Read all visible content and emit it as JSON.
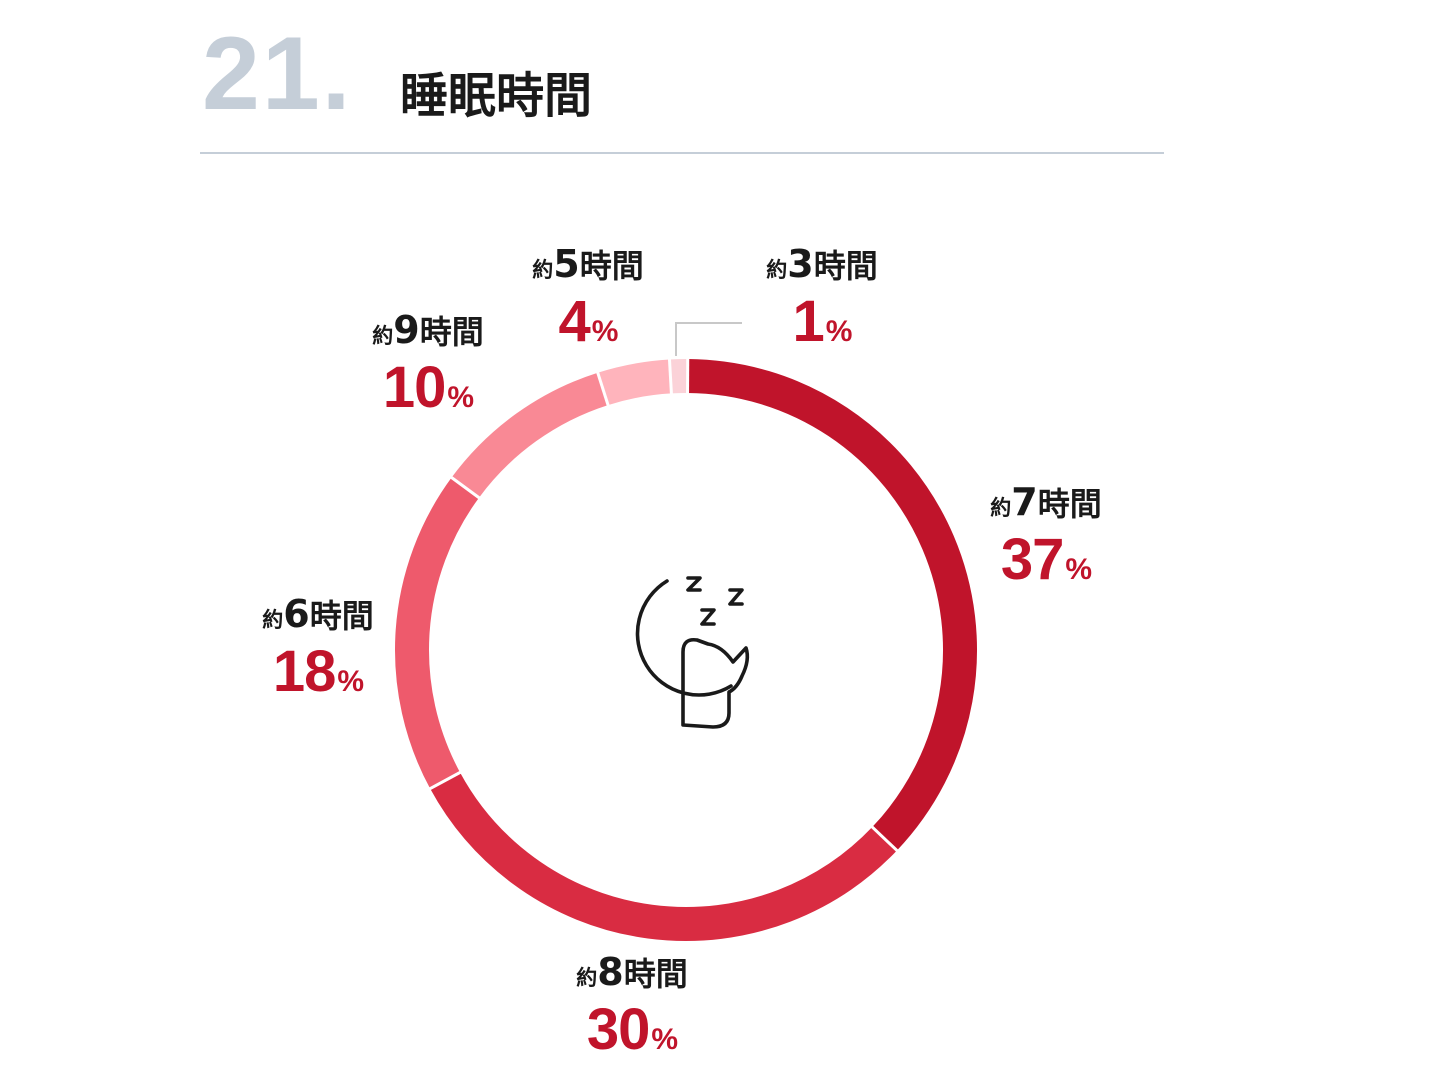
{
  "header": {
    "number": "21.",
    "title": "睡眠時間"
  },
  "icon": "sleeping-moon-icon",
  "chart_data": {
    "type": "pie",
    "categories": [
      "約3時間",
      "約7時間",
      "約8時間",
      "約6時間",
      "約9時間",
      "約5時間"
    ],
    "values": [
      1,
      37,
      30,
      18,
      10,
      4
    ],
    "unit": "%",
    "colors": [
      "#fbd2d8",
      "#c0142b",
      "#d92c42",
      "#ee5a6c",
      "#f98995",
      "#ffb4bc"
    ]
  },
  "labels": [
    {
      "prefix": "約",
      "hours": "3",
      "suffix": "時間",
      "value": "1",
      "unit": "%"
    },
    {
      "prefix": "約",
      "hours": "7",
      "suffix": "時間",
      "value": "37",
      "unit": "%"
    },
    {
      "prefix": "約",
      "hours": "8",
      "suffix": "時間",
      "value": "30",
      "unit": "%"
    },
    {
      "prefix": "約",
      "hours": "6",
      "suffix": "時間",
      "value": "18",
      "unit": "%"
    },
    {
      "prefix": "約",
      "hours": "9",
      "suffix": "時間",
      "value": "10",
      "unit": "%"
    },
    {
      "prefix": "約",
      "hours": "5",
      "suffix": "時間",
      "value": "4",
      "unit": "%"
    }
  ]
}
